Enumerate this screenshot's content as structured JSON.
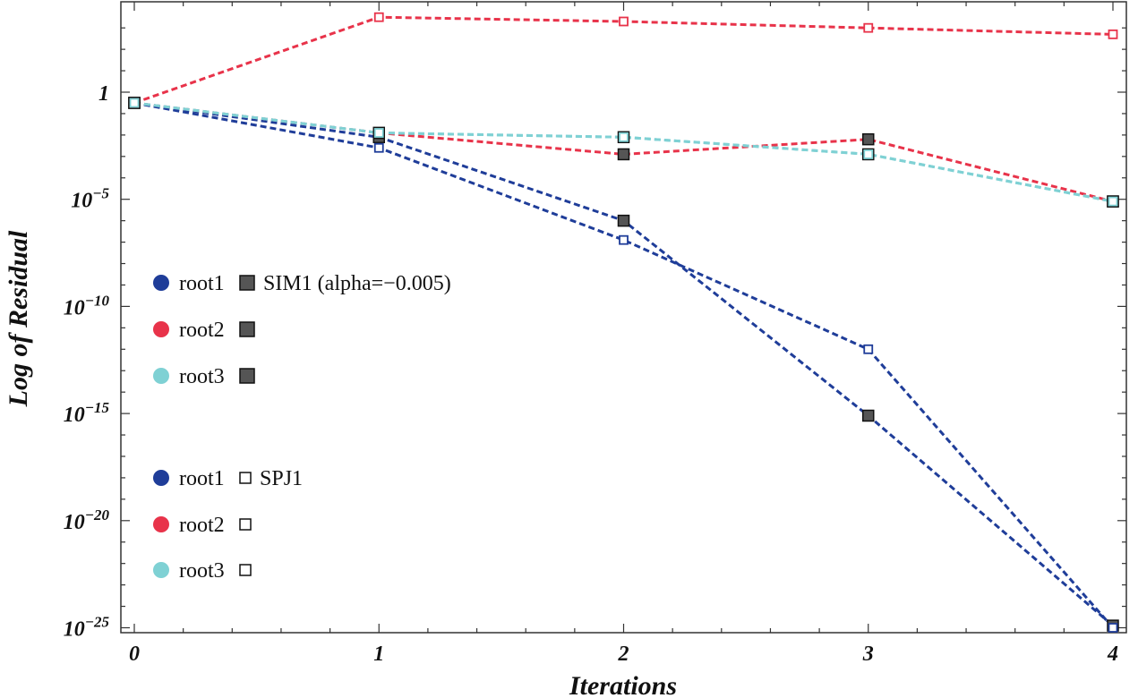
{
  "chart_data": {
    "type": "line",
    "title": "",
    "xlabel": "Iterations",
    "ylabel": "Log of  Residual",
    "scale_y": "log10",
    "xlim": [
      0,
      4
    ],
    "ylim_exponent": [
      -25.5,
      3.8
    ],
    "x_ticks": [
      0,
      1,
      2,
      3,
      4
    ],
    "x_tick_labels": [
      "0",
      "1",
      "2",
      "3",
      "4"
    ],
    "y_ticks_exponent": [
      0,
      -5,
      -10,
      -15,
      -20,
      -25
    ],
    "y_tick_labels": [
      {
        "base": "1",
        "sup": ""
      },
      {
        "base": "10",
        "sup": "−5"
      },
      {
        "base": "10",
        "sup": "−10"
      },
      {
        "base": "10",
        "sup": "−15"
      },
      {
        "base": "10",
        "sup": "−20"
      },
      {
        "base": "10",
        "sup": "−25"
      }
    ],
    "colors": {
      "root1": "#1f3d99",
      "root2": "#e8334a",
      "root3": "#7fd1d4",
      "filled_marker": "#555555"
    },
    "series": [
      {
        "name": "root1 SIM1",
        "root": "root1",
        "marker": "filled",
        "x": [
          0,
          1,
          2,
          3,
          4
        ],
        "log10_y": [
          -0.5,
          -2.1,
          -6.0,
          -15.1,
          -24.9
        ]
      },
      {
        "name": "root2 SIM1",
        "root": "root2",
        "marker": "filled",
        "x": [
          0,
          1,
          2,
          3,
          4
        ],
        "log10_y": [
          -0.5,
          -1.9,
          -2.9,
          -2.2,
          -5.1
        ]
      },
      {
        "name": "root3 SIM1",
        "root": "root3",
        "marker": "filled",
        "x": [
          0,
          1,
          2,
          3,
          4
        ],
        "log10_y": [
          -0.5,
          -1.9,
          -2.1,
          -2.9,
          -5.1
        ]
      },
      {
        "name": "root1 SPJ1",
        "root": "root1",
        "marker": "open",
        "x": [
          0,
          1,
          2,
          3,
          4
        ],
        "log10_y": [
          -0.5,
          -2.6,
          -6.9,
          -12.0,
          -25.0
        ]
      },
      {
        "name": "root2 SPJ1",
        "root": "root2",
        "marker": "open",
        "x": [
          0,
          1,
          2,
          3,
          4
        ],
        "log10_y": [
          -0.5,
          3.5,
          3.3,
          3.0,
          2.7
        ]
      },
      {
        "name": "root3 SPJ1",
        "root": "root3",
        "marker": "open",
        "x": [
          0,
          1,
          2,
          3,
          4
        ],
        "log10_y": [
          -0.5,
          -1.9,
          -2.1,
          -2.9,
          -5.1
        ]
      }
    ],
    "legend": {
      "placement": "left",
      "groups": [
        {
          "items": [
            {
              "label": "root1",
              "root": "root1",
              "marker": "filled",
              "suffix": "SIM1 (alpha=−0.005)"
            },
            {
              "label": "root2",
              "root": "root2",
              "marker": "filled",
              "suffix": ""
            },
            {
              "label": "root3",
              "root": "root3",
              "marker": "filled",
              "suffix": ""
            }
          ]
        },
        {
          "items": [
            {
              "label": "root1",
              "root": "root1",
              "marker": "open",
              "suffix": "SPJ1"
            },
            {
              "label": "root2",
              "root": "root2",
              "marker": "open",
              "suffix": ""
            },
            {
              "label": "root3",
              "root": "root3",
              "marker": "open",
              "suffix": ""
            }
          ]
        }
      ]
    }
  }
}
